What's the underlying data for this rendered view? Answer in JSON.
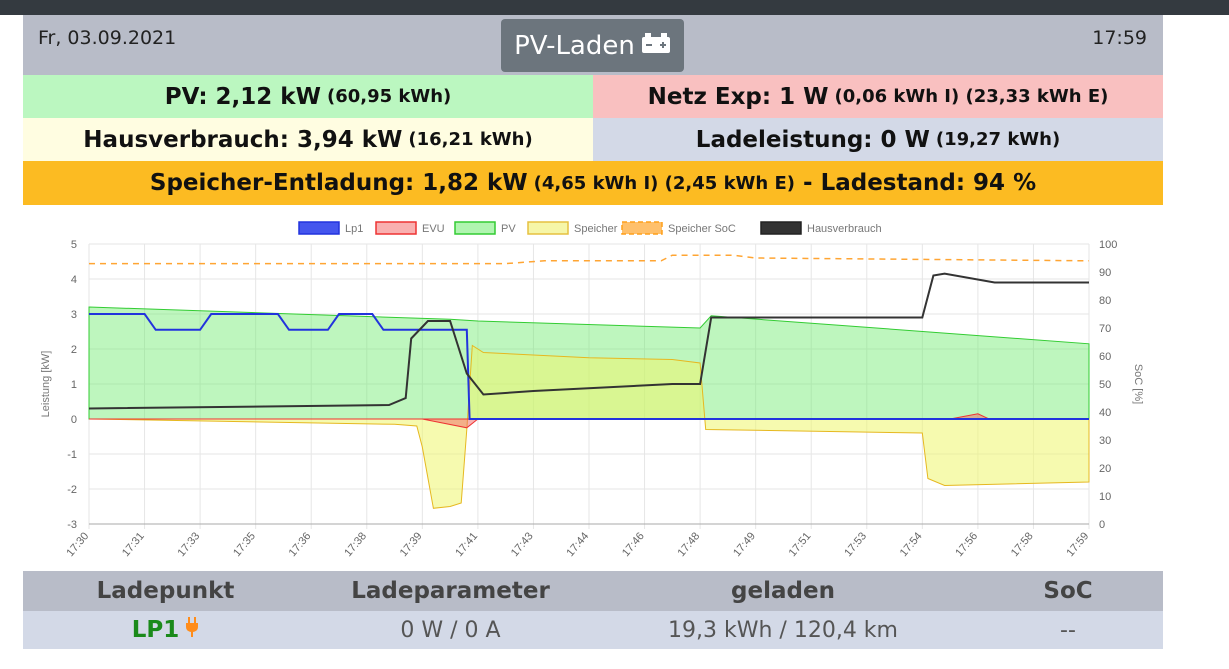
{
  "header": {
    "date": "Fr, 03.09.2021",
    "title": "PV-Laden",
    "time": "17:59"
  },
  "status": {
    "pv": {
      "main": "PV: 2,12 kW",
      "sub": "(60,95 kWh)"
    },
    "netz": {
      "main": "Netz Exp: 1 W",
      "sub": "(0,06 kWh I) (23,33 kWh E)"
    },
    "haus": {
      "main": "Hausverbrauch: 3,94 kW",
      "sub": "(16,21 kWh)"
    },
    "lade": {
      "main": "Ladeleistung: 0 W",
      "sub": "(19,27 kWh)"
    },
    "speicher": {
      "main": "Speicher-Entladung: 1,82 kW",
      "sub": "(4,65 kWh I) (2,45 kWh E)",
      "tail": "- Ladestand: 94 %"
    }
  },
  "colors": {
    "pv": "#bbf7c0",
    "netz": "#f9c0c0",
    "haus": "#fffde1",
    "lade": "#d3d9e7",
    "speicher": "#fcbb22"
  },
  "chart_data": {
    "type": "line",
    "legend": [
      "Lp1",
      "EVU",
      "PV",
      "Speicher",
      "Speicher SoC",
      "Hausverbrauch"
    ],
    "legend_placement": "top",
    "ylabel": "Leistung [kW]",
    "y2label": "SoC [%]",
    "ylim": [
      -3,
      5
    ],
    "y2lim": [
      0,
      100
    ],
    "yticks": [
      "5",
      "4",
      "3",
      "2",
      "1",
      "0",
      "-1",
      "-2",
      "-3"
    ],
    "y2ticks": [
      "100",
      "90",
      "80",
      "70",
      "60",
      "50",
      "40",
      "30",
      "20",
      "10",
      "0"
    ],
    "xticks": [
      "17:30",
      "17:31",
      "17:33",
      "17:35",
      "17:36",
      "17:38",
      "17:39",
      "17:41",
      "17:43",
      "17:44",
      "17:46",
      "17:48",
      "17:49",
      "17:51",
      "17:53",
      "17:54",
      "17:56",
      "17:58",
      "17:59"
    ],
    "grid": true,
    "series": [
      {
        "name": "Lp1",
        "color": "#2233dd",
        "points": [
          [
            0,
            3.0
          ],
          [
            1.0,
            3.0
          ],
          [
            1.2,
            2.55
          ],
          [
            2.0,
            2.55
          ],
          [
            2.2,
            3.0
          ],
          [
            3.4,
            3.0
          ],
          [
            3.6,
            2.55
          ],
          [
            4.3,
            2.55
          ],
          [
            4.5,
            3.0
          ],
          [
            5.1,
            3.0
          ],
          [
            5.3,
            2.55
          ],
          [
            6.5,
            2.55
          ],
          [
            6.55,
            2.55
          ],
          [
            6.8,
            2.55
          ],
          [
            6.85,
            0.0
          ],
          [
            18,
            0.0
          ]
        ]
      },
      {
        "name": "EVU",
        "color": "#ee3333",
        "points": [
          [
            0,
            0
          ],
          [
            6.0,
            0
          ],
          [
            6.8,
            -0.25
          ],
          [
            7.0,
            0
          ],
          [
            15.5,
            0
          ],
          [
            16.0,
            0.15
          ],
          [
            16.2,
            0
          ],
          [
            18,
            0
          ]
        ]
      },
      {
        "name": "PV",
        "color": "#22cc22",
        "points": [
          [
            0,
            3.2
          ],
          [
            6.5,
            2.85
          ],
          [
            7.0,
            2.8
          ],
          [
            11.0,
            2.6
          ],
          [
            11.2,
            2.95
          ],
          [
            18,
            2.15
          ]
        ]
      },
      {
        "name": "Speicher",
        "color": "#f2c233",
        "points": [
          [
            0,
            0
          ],
          [
            5.5,
            -0.15
          ],
          [
            5.9,
            -0.2
          ],
          [
            6.0,
            -0.8
          ],
          [
            6.2,
            -2.55
          ],
          [
            6.5,
            -2.5
          ],
          [
            6.7,
            -2.4
          ],
          [
            6.8,
            -0.3
          ],
          [
            6.9,
            2.1
          ],
          [
            7.1,
            1.9
          ],
          [
            9.0,
            1.75
          ],
          [
            10.5,
            1.7
          ],
          [
            11.0,
            1.6
          ],
          [
            11.1,
            -0.3
          ],
          [
            15.0,
            -0.4
          ],
          [
            15.1,
            -1.7
          ],
          [
            15.4,
            -1.9
          ],
          [
            18,
            -1.8
          ]
        ]
      },
      {
        "name": "Speicher SoC",
        "color": "#ff9f1a",
        "points": [
          [
            0,
            93
          ],
          [
            7.5,
            93
          ],
          [
            8.2,
            94
          ],
          [
            10.3,
            94
          ],
          [
            10.5,
            96
          ],
          [
            11.6,
            96
          ],
          [
            12.0,
            95
          ],
          [
            18,
            94
          ]
        ]
      },
      {
        "name": "Hausverbrauch",
        "color": "#333333",
        "points": [
          [
            0,
            0.3
          ],
          [
            5.4,
            0.4
          ],
          [
            5.7,
            0.6
          ],
          [
            5.8,
            2.3
          ],
          [
            6.1,
            2.8
          ],
          [
            6.5,
            2.8
          ],
          [
            6.8,
            1.3
          ],
          [
            7.1,
            0.7
          ],
          [
            8.0,
            0.8
          ],
          [
            10.5,
            1.0
          ],
          [
            11.0,
            1.0
          ],
          [
            11.2,
            2.9
          ],
          [
            14.5,
            2.9
          ],
          [
            15.0,
            2.9
          ],
          [
            15.2,
            4.1
          ],
          [
            15.4,
            4.15
          ],
          [
            16.3,
            3.9
          ],
          [
            18,
            3.9
          ]
        ]
      }
    ]
  },
  "table": {
    "headers": [
      "Ladepunkt",
      "Ladeparameter",
      "geladen",
      "SoC"
    ],
    "row": {
      "lp": "LP1",
      "param": "0 W / 0 A",
      "geladen": "19,3 kWh / 120,4 km",
      "soc": "--"
    }
  }
}
